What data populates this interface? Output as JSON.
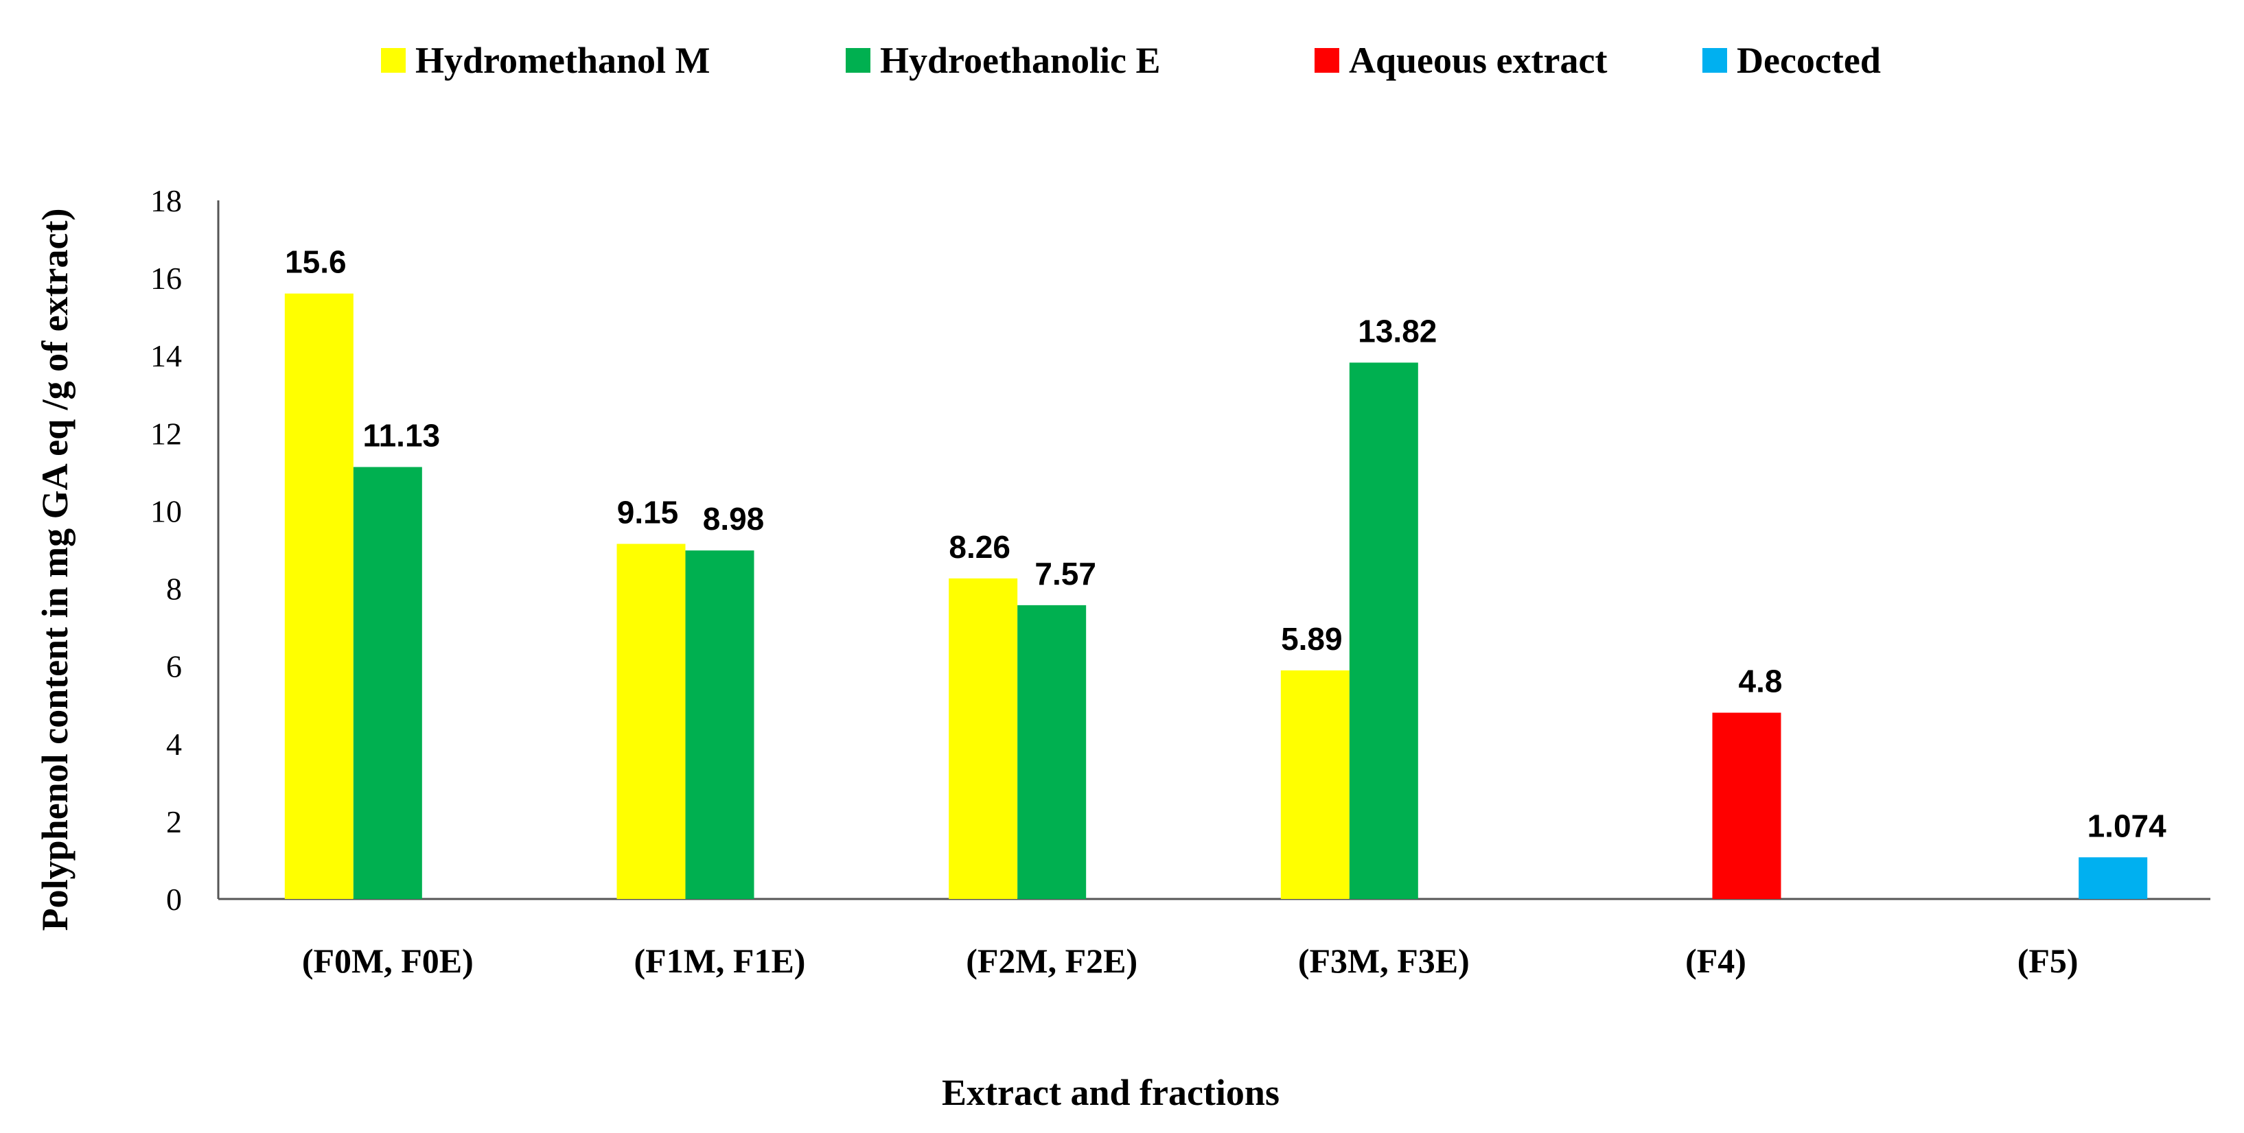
{
  "chart_data": {
    "type": "bar",
    "categories": [
      "(F0M, F0E)",
      "(F1M, F1E)",
      "(F2M, F2E)",
      "(F3M, F3E)",
      "(F4)",
      "(F5)"
    ],
    "series": [
      {
        "name": "Hydromethanol M",
        "color": "#FFFF00",
        "values": [
          15.6,
          9.15,
          8.26,
          5.89,
          null,
          null
        ],
        "labels": [
          "15.6",
          "9.15",
          "8.26",
          "5.89",
          null,
          null
        ]
      },
      {
        "name": "Hydroethanolic E",
        "color": "#00B050",
        "values": [
          11.13,
          8.98,
          7.57,
          13.82,
          null,
          null
        ],
        "labels": [
          "11.13",
          "8.98",
          "7.57",
          "13.82",
          null,
          null
        ]
      },
      {
        "name": "Aqueous extract",
        "color": "#FF0000",
        "values": [
          null,
          null,
          null,
          null,
          4.8,
          null
        ],
        "labels": [
          null,
          null,
          null,
          null,
          "4.8",
          null
        ]
      },
      {
        "name": "Decocted",
        "color": "#00B0F0",
        "values": [
          null,
          null,
          null,
          null,
          null,
          1.074
        ],
        "labels": [
          null,
          null,
          null,
          null,
          null,
          "1.074"
        ]
      }
    ],
    "xlabel": "Extract and fractions",
    "ylabel": "Polyphenol content in mg GA eq /g of extract)",
    "ylim": [
      0,
      18
    ],
    "yticks": [
      0,
      2,
      4,
      6,
      8,
      10,
      12,
      14,
      16,
      18
    ],
    "grid": false,
    "legend_position": "top"
  }
}
